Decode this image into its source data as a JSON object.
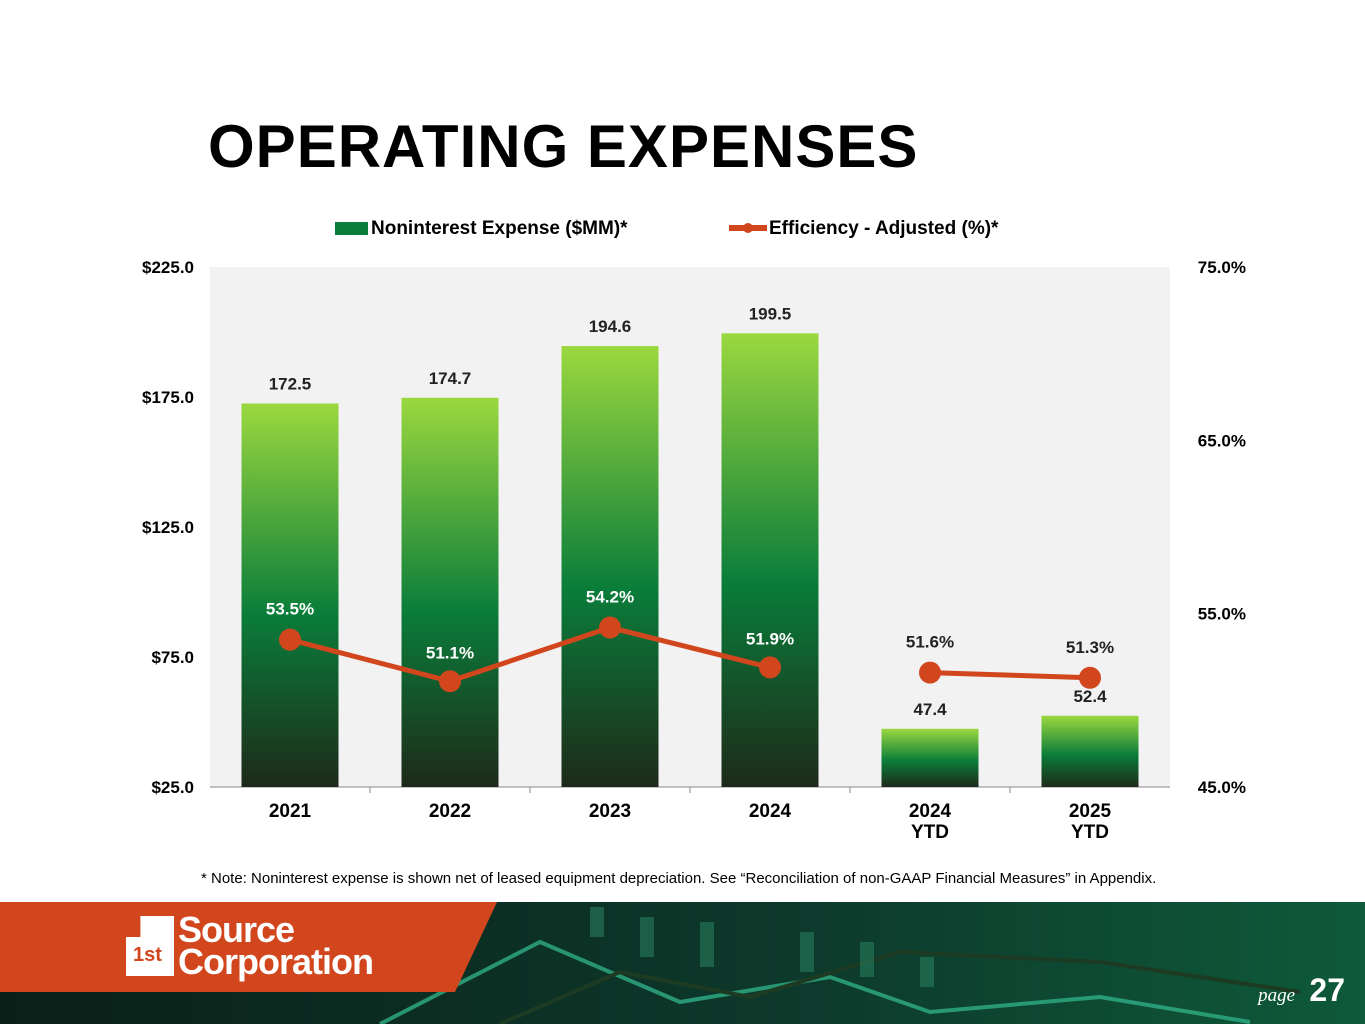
{
  "title": "OPERATING EXPENSES",
  "note": "* Note: Noninterest expense is shown net of leased equipment depreciation. See “Reconciliation of non-GAAP Financial Measures” in Appendix.",
  "footer": {
    "logo_line1": "Source",
    "logo_line2": "Corporation",
    "logo_mark": "1st",
    "page_label": "page",
    "page_number": "27"
  },
  "colors": {
    "bar_top": "#9bd83f",
    "bar_mid": "#0a7d3a",
    "bar_bottom": "#1e2a1a",
    "line": "#d2461e",
    "plot_bg": "#f2f2f2",
    "footer_orange": "#d2461e",
    "footer_dark": "#0c2a22"
  },
  "chart_data": {
    "type": "bar+line",
    "categories": [
      [
        "2021"
      ],
      [
        "2022"
      ],
      [
        "2023"
      ],
      [
        "2024"
      ],
      [
        "2024",
        "YTD"
      ],
      [
        "2025",
        "YTD"
      ]
    ],
    "series": [
      {
        "name": "Noninterest Expense ($MM)*",
        "type": "bar",
        "axis": "left",
        "values": [
          172.5,
          174.7,
          194.6,
          199.5,
          47.4,
          52.4
        ],
        "labels": [
          "172.5",
          "174.7",
          "194.6",
          "199.5",
          "47.4",
          "52.4"
        ]
      },
      {
        "name": "Efficiency - Adjusted (%)*",
        "type": "line",
        "axis": "right",
        "values": [
          53.5,
          51.1,
          54.2,
          51.9,
          51.6,
          51.3
        ],
        "labels": [
          "53.5%",
          "51.1%",
          "54.2%",
          "51.9%",
          "51.6%",
          "51.3%"
        ],
        "segments": [
          [
            0,
            3
          ],
          [
            4,
            5
          ]
        ]
      }
    ],
    "left_axis": {
      "range": [
        25,
        225
      ],
      "ticks": [
        25,
        75,
        125,
        175,
        225
      ],
      "tick_labels": [
        "$25.0",
        "$75.0",
        "$125.0",
        "$175.0",
        "$225.0"
      ]
    },
    "right_axis": {
      "range": [
        45,
        75
      ],
      "ticks": [
        45,
        55,
        65,
        75
      ],
      "tick_labels": [
        "45.0%",
        "55.0%",
        "65.0%",
        "75.0%"
      ]
    },
    "legend": "top",
    "grid": false
  }
}
